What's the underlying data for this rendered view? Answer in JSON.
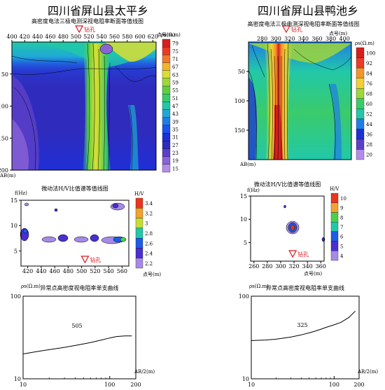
{
  "titles": {
    "left": "四川省屏山县太平乡",
    "right": "四川省屏山县鸭池乡"
  },
  "colors": {
    "scale_res_left": [
      "#b48ce8",
      "#8a63d6",
      "#5b3fc8",
      "#2f2bbd",
      "#1f2fd6",
      "#1c52ee",
      "#1e7ee6",
      "#1fa8d6",
      "#22c8a8",
      "#3acb6b",
      "#5fcf3f",
      "#9fd63a",
      "#d9de35",
      "#f2b62e",
      "#f2792a",
      "#ec3b25",
      "#d61f1f"
    ],
    "scale_res_right": [
      "#b48ce8",
      "#5b3fc8",
      "#1f2fd6",
      "#1e7ee6",
      "#22c8a8",
      "#3acb6b",
      "#9fd63a",
      "#f2cf35",
      "#f2952a",
      "#ec3b25",
      "#d61f1f"
    ],
    "scale_hv_left": [
      "#a68ae6",
      "#4b2fd0",
      "#1f5be6",
      "#22c8a8",
      "#4bd04a",
      "#c6dd35",
      "#f2a22e",
      "#e8361f"
    ],
    "scale_hv_right": [
      "#a68ae6",
      "#4b2fd0",
      "#1f5be6",
      "#22c8a8",
      "#4bd04a",
      "#f2a22e",
      "#e8361f"
    ],
    "drill_marker": "#d81818",
    "curve": "#000000"
  },
  "chart_data": [
    {
      "id": "res_left",
      "type": "heatmap",
      "title": "高密度电法三极电测深视电阻率断面等值线图",
      "x_ticks": [
        400,
        420,
        440,
        460,
        480,
        500,
        520,
        540,
        560,
        580,
        600,
        620
      ],
      "y_ticks": [
        50,
        100,
        150,
        200
      ],
      "xlim": [
        400,
        625
      ],
      "ylim": [
        0,
        200
      ],
      "x_unit": "点号(m)",
      "y_unit": "AB(m)",
      "colorbar_title": "ρs(Ω.m)",
      "colorbar_values": [
        79,
        75,
        71,
        67,
        63,
        59,
        55,
        51,
        47,
        43,
        39,
        35,
        31,
        27,
        23,
        19,
        15
      ],
      "drill": {
        "x": 505,
        "label": "钻孔"
      }
    },
    {
      "id": "res_right",
      "type": "heatmap",
      "title": "高密度电法三极电测深视电阻率断面等值线图",
      "x_ticks": [
        280,
        300,
        320,
        340,
        360,
        380,
        400
      ],
      "y_ticks": [
        50,
        100,
        150
      ],
      "xlim": [
        260,
        410
      ],
      "ylim": [
        0,
        200
      ],
      "x_unit": "点号(m)",
      "y_unit": "AB(m)",
      "colorbar_title": "ρs(Ω.m)",
      "colorbar_values": [
        100,
        92,
        84,
        76,
        68,
        60,
        52,
        44,
        36,
        28,
        20
      ],
      "drill": {
        "x": 315,
        "label": "钻孔"
      }
    },
    {
      "id": "hv_left",
      "type": "heatmap",
      "title": "微动法H/V比值谱等值线图",
      "x_ticks": [
        420,
        440,
        460,
        480,
        500,
        520,
        540,
        560
      ],
      "y_ticks": [
        5,
        10,
        15
      ],
      "xlim": [
        410,
        570
      ],
      "ylim": [
        2,
        15
      ],
      "x_unit": "点号(m)",
      "y_unit": "f(Hz)",
      "colorbar_title": "H/V",
      "colorbar_values": [
        3.4,
        3.2,
        3,
        2.8,
        2.6,
        2.4,
        2.2
      ],
      "drill": {
        "x": 505,
        "label": "钻孔"
      }
    },
    {
      "id": "hv_right",
      "type": "heatmap",
      "title": "微动法H/V比值谱等值线图",
      "x_ticks": [
        260,
        280,
        300,
        320,
        340,
        360
      ],
      "y_ticks": [
        5,
        10,
        15
      ],
      "xlim": [
        255,
        365
      ],
      "ylim": [
        1,
        15
      ],
      "x_unit": "点号(m)",
      "y_unit": "f(Hz)",
      "colorbar_title": "H/V",
      "colorbar_values": [
        10,
        9,
        8,
        7,
        6,
        5,
        4
      ],
      "drill": {
        "x": 318,
        "label": "钻孔"
      }
    },
    {
      "id": "curve_left",
      "type": "line",
      "title": "异常点高密度视电阻率单支曲线",
      "point_label": "505",
      "x_scale": "log",
      "y_scale": "log",
      "xlim": [
        10,
        200
      ],
      "ylim": [
        10,
        100
      ],
      "x_ticks": [
        10,
        100,
        200
      ],
      "y_ticks": [
        10,
        100
      ],
      "xlabel": "AB/2(m)",
      "ylabel": "ρs(Ω.m)",
      "x": [
        10,
        15,
        20,
        30,
        40,
        50,
        60,
        80,
        100,
        120,
        150,
        180
      ],
      "y": [
        20,
        21.5,
        22.5,
        24,
        25.3,
        26.5,
        27.5,
        29.5,
        31.2,
        32.5,
        33,
        33
      ]
    },
    {
      "id": "curve_right",
      "type": "line",
      "title": "异常点高密度视电阻率单支曲线",
      "point_label": "325",
      "x_scale": "log",
      "y_scale": "log",
      "xlim": [
        10,
        200
      ],
      "ylim": [
        10,
        100
      ],
      "x_ticks": [
        10,
        100,
        200
      ],
      "y_ticks": [
        10,
        100
      ],
      "xlabel": "AB/2(m)",
      "ylabel": "ρs(Ω.m)",
      "x": [
        10,
        15,
        20,
        30,
        40,
        50,
        60,
        70,
        80,
        100,
        120,
        150,
        180
      ],
      "y": [
        29,
        29.5,
        30.2,
        32,
        34,
        36,
        38,
        40,
        42,
        45,
        48,
        55,
        66
      ]
    }
  ]
}
